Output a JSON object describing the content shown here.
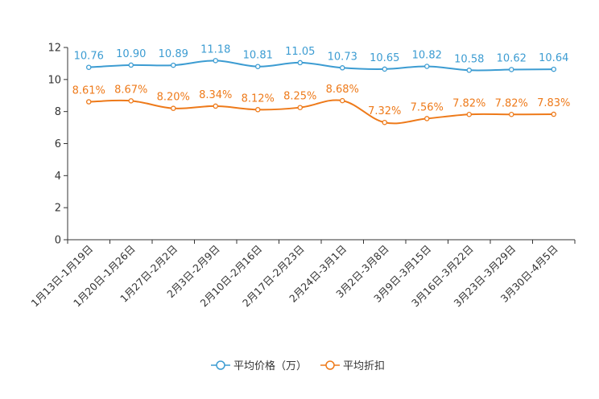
{
  "chart_data": {
    "type": "line",
    "categories": [
      "1月13日-1月19日",
      "1月20日-1月26日",
      "1月27日-2月2日",
      "2月3日-2月9日",
      "2月10日-2月16日",
      "2月17日-2月23日",
      "2月24日-3月1日",
      "3月2日-3月8日",
      "3月9日-3月15日",
      "3月16日-3月22日",
      "3月23日-3月29日",
      "3月30日-4月5日"
    ],
    "ylim": [
      0,
      12
    ],
    "yticks": [
      "0",
      "2",
      "4",
      "6",
      "8",
      "10",
      "12"
    ],
    "series": [
      {
        "name": "平均价格（万）",
        "color": "#3C9CD2",
        "values": [
          10.76,
          10.9,
          10.89,
          11.18,
          10.81,
          11.05,
          10.73,
          10.65,
          10.82,
          10.58,
          10.62,
          10.64
        ],
        "labels": [
          "10.76",
          "10.90",
          "10.89",
          "11.18",
          "10.81",
          "11.05",
          "10.73",
          "10.65",
          "10.82",
          "10.58",
          "10.62",
          "10.64"
        ]
      },
      {
        "name": "平均折扣",
        "color": "#EE7A1A",
        "values": [
          8.61,
          8.67,
          8.2,
          8.34,
          8.12,
          8.25,
          8.68,
          7.32,
          7.56,
          7.82,
          7.82,
          7.83
        ],
        "labels": [
          "8.61%",
          "8.67%",
          "8.20%",
          "8.34%",
          "8.12%",
          "8.25%",
          "8.68%",
          "7.32%",
          "7.56%",
          "7.82%",
          "7.82%",
          "7.83%"
        ]
      }
    ],
    "legend": "bottom"
  }
}
